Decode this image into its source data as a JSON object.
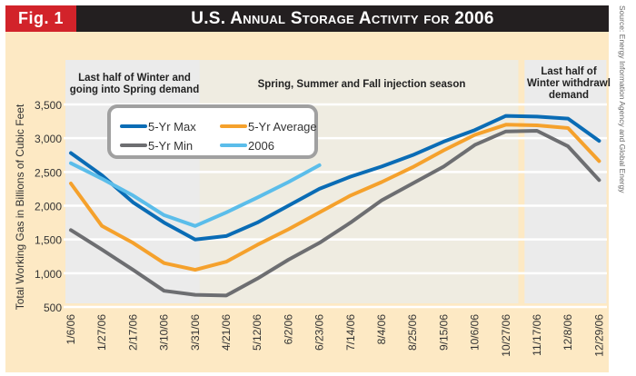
{
  "header": {
    "fig_label": "Fig. 1",
    "title": "U.S. Annual Storage Activity for 2006",
    "source": "Source: Energy Information Agency and Global Energy"
  },
  "colors": {
    "max": "#0a6cb5",
    "average": "#f5a12c",
    "min": "#6d6e71",
    "y2006": "#5bbdea",
    "title_bar": "#231f20",
    "fig_box": "#d2232a",
    "background": "#fde9c4",
    "region_winter": "#ebebeb",
    "region_injection": "#efece1"
  },
  "chart_data": {
    "type": "line",
    "title": "U.S. Annual Storage Activity for 2006",
    "xlabel": "",
    "ylabel": "Total Working Gas in Billions of Cubic Feet",
    "ylim": [
      500,
      3500
    ],
    "yticks": [
      500,
      1000,
      1500,
      2000,
      2500,
      3000,
      3500
    ],
    "ytick_labels": [
      "500",
      "1,000",
      "1,500",
      "2,000",
      "2,500",
      "3,000",
      "3,500"
    ],
    "grid": true,
    "legend_position": "top-left",
    "categories": [
      "1/6/06",
      "1/27/06",
      "2/17/06",
      "3/10/06",
      "3/31/06",
      "4/21/06",
      "5/12/06",
      "6/2/06",
      "6/23/06",
      "7/14/06",
      "8/4/06",
      "8/25/06",
      "9/15/06",
      "10/6/06",
      "10/27/06",
      "11/17/06",
      "12/8/06",
      "12/29/06"
    ],
    "regions": [
      {
        "label": "Last half of Winter and going into Spring demand",
        "start": 0,
        "end": 4.15
      },
      {
        "label": "Spring, Summer and Fall injection season",
        "start": 4.15,
        "end": 14.4
      },
      {
        "label": "Last half of Winter withdrawl demand",
        "start": 14.6,
        "end": 17.2
      }
    ],
    "series": [
      {
        "name": "5-Yr Max",
        "key": "max",
        "values": [
          2780,
          2450,
          2050,
          1750,
          1500,
          1550,
          1750,
          2000,
          2250,
          2430,
          2580,
          2750,
          2950,
          3120,
          3330,
          3320,
          3290,
          2960
        ]
      },
      {
        "name": "5-Yr Average",
        "key": "average",
        "values": [
          2330,
          1700,
          1450,
          1150,
          1050,
          1170,
          1420,
          1650,
          1900,
          2150,
          2350,
          2570,
          2820,
          3050,
          3200,
          3190,
          3150,
          2660
        ]
      },
      {
        "name": "5-Yr Min",
        "key": "min",
        "values": [
          1640,
          1350,
          1050,
          740,
          680,
          670,
          920,
          1200,
          1450,
          1750,
          2080,
          2330,
          2580,
          2900,
          3100,
          3110,
          2880,
          2380
        ]
      },
      {
        "name": "2006",
        "key": "y2006",
        "values": [
          2630,
          2400,
          2150,
          1860,
          1700,
          1900,
          2120,
          2350,
          2600,
          null,
          null,
          null,
          null,
          null,
          null,
          null,
          null,
          null
        ]
      }
    ]
  },
  "legend": {
    "items": [
      {
        "label": "5-Yr Max",
        "key": "max"
      },
      {
        "label": "5-Yr Average",
        "key": "average"
      },
      {
        "label": "5-Yr Min",
        "key": "min"
      },
      {
        "label": "2006",
        "key": "y2006"
      }
    ]
  }
}
